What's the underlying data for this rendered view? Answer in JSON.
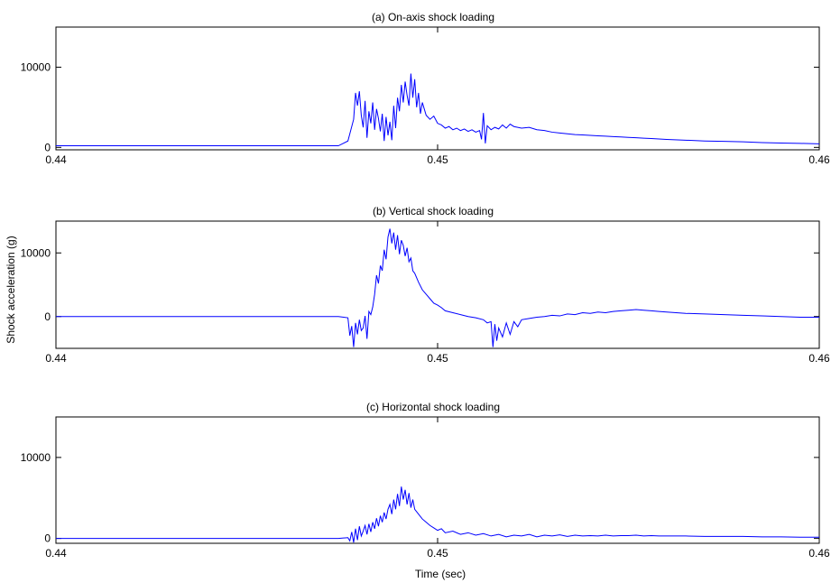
{
  "figure": {
    "ylabel": "Shock acceleration (g)",
    "xlabel": "Time (sec)"
  },
  "chart_data": [
    {
      "type": "line",
      "title": "(a) On-axis shock loading",
      "xlim": [
        0.44,
        0.46
      ],
      "ylim": [
        -300,
        15000
      ],
      "xticks": [
        "0.44",
        "0.45",
        "0.46"
      ],
      "yticks": [
        "0",
        "10000"
      ],
      "line_color": "#0000ff",
      "series": [
        {
          "x": [
            0.44,
            0.4474,
            0.44765,
            0.4478,
            0.44785,
            0.4479,
            0.44795,
            0.448,
            0.44805,
            0.4481,
            0.44815,
            0.4482,
            0.44825,
            0.4483,
            0.44835,
            0.4484,
            0.44845,
            0.4485,
            0.44855,
            0.4486,
            0.44865,
            0.4487,
            0.44875,
            0.4488,
            0.44885,
            0.4489,
            0.44895,
            0.449,
            0.44905,
            0.4491,
            0.44915,
            0.4492,
            0.44925,
            0.4493,
            0.44935,
            0.4494,
            0.44945,
            0.4495,
            0.44955,
            0.4496,
            0.4497,
            0.4498,
            0.4499,
            0.45,
            0.4501,
            0.4502,
            0.4503,
            0.4504,
            0.4505,
            0.4506,
            0.4507,
            0.4508,
            0.4509,
            0.451,
            0.4511,
            0.45115,
            0.4512,
            0.45125,
            0.4513,
            0.4514,
            0.4515,
            0.4516,
            0.4517,
            0.4518,
            0.4519,
            0.452,
            0.4522,
            0.4524,
            0.4526,
            0.4528,
            0.453,
            0.4532,
            0.4534,
            0.4536,
            0.4538,
            0.454,
            0.4542,
            0.4544,
            0.4546,
            0.4548,
            0.455,
            0.4552,
            0.4554,
            0.4556,
            0.4558,
            0.456,
            0.4565,
            0.457,
            0.4575,
            0.458,
            0.4585,
            0.459,
            0.4595,
            0.46
          ],
          "y": [
            200,
            200,
            800,
            3500,
            6800,
            5200,
            7000,
            4000,
            2500,
            5800,
            1200,
            4500,
            3000,
            5600,
            2200,
            4800,
            3600,
            2000,
            4200,
            800,
            3800,
            1500,
            3200,
            900,
            5200,
            2400,
            6200,
            4500,
            7800,
            5600,
            8200,
            6500,
            5200,
            9200,
            6200,
            8500,
            5000,
            6800,
            4200,
            5600,
            4000,
            3500,
            3900,
            3000,
            2800,
            2400,
            2600,
            2200,
            2400,
            2100,
            2300,
            2000,
            2200,
            1900,
            2100,
            1000,
            4300,
            500,
            2700,
            2200,
            2500,
            2300,
            2800,
            2400,
            2900,
            2600,
            2400,
            2500,
            2200,
            2100,
            1900,
            1800,
            1700,
            1600,
            1550,
            1500,
            1450,
            1400,
            1350,
            1300,
            1250,
            1200,
            1150,
            1100,
            1050,
            1000,
            900,
            800,
            750,
            700,
            600,
            550,
            500,
            450
          ]
        }
      ]
    },
    {
      "type": "line",
      "title": "(b) Vertical shock loading",
      "xlim": [
        0.44,
        0.46
      ],
      "ylim": [
        -5000,
        15000
      ],
      "xticks": [
        "0.44",
        "0.45",
        "0.46"
      ],
      "yticks": [
        "0",
        "10000"
      ],
      "line_color": "#0000ff",
      "series": [
        {
          "x": [
            0.44,
            0.4474,
            0.44765,
            0.4477,
            0.44775,
            0.4478,
            0.44785,
            0.4479,
            0.44795,
            0.448,
            0.44805,
            0.4481,
            0.44815,
            0.4482,
            0.44825,
            0.4483,
            0.44835,
            0.4484,
            0.44845,
            0.4485,
            0.44855,
            0.4486,
            0.44865,
            0.4487,
            0.44875,
            0.4488,
            0.44885,
            0.4489,
            0.44895,
            0.449,
            0.44905,
            0.4491,
            0.44915,
            0.4492,
            0.44925,
            0.4493,
            0.44935,
            0.4494,
            0.4495,
            0.4496,
            0.4497,
            0.4498,
            0.4499,
            0.45,
            0.4501,
            0.4502,
            0.4504,
            0.4506,
            0.4508,
            0.451,
            0.4512,
            0.4513,
            0.4514,
            0.45145,
            0.4515,
            0.45155,
            0.4516,
            0.4517,
            0.4518,
            0.4519,
            0.452,
            0.4521,
            0.4522,
            0.4524,
            0.4526,
            0.4528,
            0.453,
            0.4532,
            0.4534,
            0.4536,
            0.4538,
            0.454,
            0.4542,
            0.4544,
            0.4546,
            0.4548,
            0.455,
            0.4552,
            0.4554,
            0.4556,
            0.4558,
            0.456,
            0.4565,
            0.457,
            0.4575,
            0.458,
            0.4585,
            0.459,
            0.4595,
            0.46
          ],
          "y": [
            0,
            0,
            -200,
            -3000,
            -1500,
            -4800,
            -1000,
            -2800,
            -500,
            -2200,
            -1800,
            100,
            -3500,
            800,
            300,
            1500,
            3500,
            6500,
            5200,
            8000,
            7200,
            10500,
            9000,
            12500,
            13800,
            11500,
            13200,
            10500,
            12800,
            9800,
            12000,
            11200,
            9500,
            10800,
            8600,
            9200,
            7200,
            6800,
            5400,
            4200,
            3500,
            2800,
            2100,
            1800,
            1400,
            900,
            600,
            300,
            0,
            -200,
            -500,
            -1000,
            -800,
            -4800,
            -1200,
            -3800,
            -1800,
            -3200,
            -1000,
            -2800,
            -800,
            -1600,
            -500,
            -300,
            -100,
            0,
            200,
            100,
            400,
            300,
            600,
            500,
            700,
            600,
            800,
            900,
            1000,
            1100,
            1000,
            900,
            800,
            700,
            500,
            400,
            300,
            200,
            100,
            0,
            -100,
            -100
          ]
        }
      ]
    },
    {
      "type": "line",
      "title": "(c) Horizontal shock loading",
      "xlim": [
        0.44,
        0.46
      ],
      "ylim": [
        -600,
        15000
      ],
      "xticks": [
        "0.44",
        "0.45",
        "0.46"
      ],
      "yticks": [
        "0",
        "10000"
      ],
      "line_color": "#0000ff",
      "series": [
        {
          "x": [
            0.44,
            0.4474,
            0.44765,
            0.4477,
            0.44775,
            0.4478,
            0.44785,
            0.4479,
            0.44795,
            0.448,
            0.44805,
            0.4481,
            0.44815,
            0.4482,
            0.44825,
            0.4483,
            0.44835,
            0.4484,
            0.44845,
            0.4485,
            0.44855,
            0.4486,
            0.44865,
            0.4487,
            0.44875,
            0.4488,
            0.44885,
            0.4489,
            0.44895,
            0.449,
            0.44905,
            0.4491,
            0.44915,
            0.4492,
            0.44925,
            0.4493,
            0.44935,
            0.4494,
            0.4495,
            0.4496,
            0.4497,
            0.4498,
            0.4499,
            0.45,
            0.4501,
            0.4502,
            0.4504,
            0.4506,
            0.4508,
            0.451,
            0.4512,
            0.4514,
            0.4516,
            0.4518,
            0.452,
            0.4522,
            0.4524,
            0.4526,
            0.4528,
            0.453,
            0.4532,
            0.4534,
            0.4536,
            0.4538,
            0.454,
            0.4542,
            0.4544,
            0.4546,
            0.4548,
            0.455,
            0.4552,
            0.4554,
            0.4556,
            0.4558,
            0.456,
            0.4565,
            0.457,
            0.4575,
            0.458,
            0.4585,
            0.459,
            0.4595,
            0.46
          ],
          "y": [
            0,
            0,
            100,
            -300,
            800,
            -500,
            1200,
            -200,
            1500,
            300,
            900,
            1600,
            500,
            1800,
            800,
            2000,
            1200,
            2500,
            1500,
            2800,
            2000,
            3200,
            2400,
            3600,
            4200,
            3000,
            4800,
            3600,
            5500,
            4000,
            6400,
            4800,
            6000,
            4200,
            5600,
            3800,
            4800,
            3600,
            3000,
            2400,
            2000,
            1600,
            1300,
            1000,
            1200,
            700,
            900,
            500,
            700,
            400,
            600,
            300,
            500,
            200,
            400,
            300,
            500,
            200,
            400,
            300,
            450,
            250,
            400,
            300,
            350,
            300,
            400,
            300,
            350,
            350,
            400,
            300,
            350,
            300,
            300,
            300,
            250,
            250,
            250,
            200,
            200,
            150,
            150
          ]
        }
      ]
    }
  ]
}
